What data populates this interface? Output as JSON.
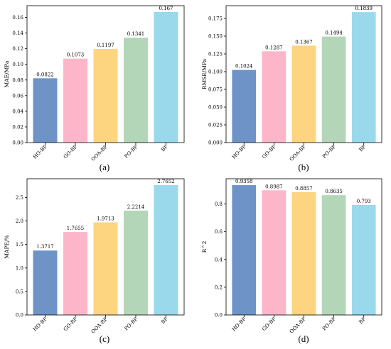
{
  "colors": [
    "#6e93c7",
    "#fdb6c9",
    "#fdd47f",
    "#b3d6b8",
    "#9ad9ec"
  ],
  "chart_data": [
    {
      "type": "bar",
      "panel": "(a)",
      "ylabel": "MAE/MPa",
      "categories": [
        "HO-BP",
        "GO-BP",
        "OOA-BP",
        "PO-BP",
        "BP"
      ],
      "values": [
        0.0822,
        0.1073,
        0.1197,
        0.1341,
        0.167
      ],
      "value_labels": [
        "0.0822",
        "0.1073",
        "0.1197",
        "0.1341",
        "0.167"
      ],
      "ylim": [
        0,
        0.175
      ],
      "yticks": [
        0,
        0.02,
        0.04,
        0.06,
        0.08,
        0.1,
        0.12,
        0.14,
        0.16
      ],
      "ytick_labels": [
        "0.00",
        "0.02",
        "0.04",
        "0.06",
        "0.08",
        "0.10",
        "0.12",
        "0.14",
        "0.16"
      ]
    },
    {
      "type": "bar",
      "panel": "(b)",
      "ylabel": "RMSE/MPa",
      "categories": [
        "HO-BP",
        "GO-BP",
        "OOA-BP",
        "PO-BP",
        "BP"
      ],
      "values": [
        0.1024,
        0.1287,
        0.1367,
        0.1494,
        0.1839
      ],
      "value_labels": [
        "0.1024",
        "0.1287",
        "0.1367",
        "0.1494",
        "0.1839"
      ],
      "ylim": [
        0,
        0.193
      ],
      "yticks": [
        0,
        0.025,
        0.05,
        0.075,
        0.1,
        0.125,
        0.15,
        0.175
      ],
      "ytick_labels": [
        "0.000",
        "0.025",
        "0.050",
        "0.075",
        "0.100",
        "0.125",
        "0.150",
        "0.175"
      ]
    },
    {
      "type": "bar",
      "panel": "(c)",
      "ylabel": "MAPE/%",
      "categories": [
        "HO-BP",
        "GO-BP",
        "OOA-BP",
        "PO-BP",
        "BP"
      ],
      "values": [
        1.3717,
        1.7655,
        1.9713,
        2.2214,
        2.7652
      ],
      "value_labels": [
        "1.3717",
        "1.7655",
        "1.9713",
        "2.2214",
        "2.7652"
      ],
      "ylim": [
        0,
        2.9
      ],
      "yticks": [
        0,
        0.5,
        1.0,
        1.5,
        2.0,
        2.5
      ],
      "ytick_labels": [
        "0.0",
        "0.5",
        "1.0",
        "1.5",
        "2.0",
        "2.5"
      ]
    },
    {
      "type": "bar",
      "panel": "(d)",
      "ylabel": "R^2",
      "categories": [
        "HO-BP",
        "GO-BP",
        "OOA-BP",
        "PO-BP",
        "BP"
      ],
      "values": [
        0.9358,
        0.8987,
        0.8857,
        0.8635,
        0.793
      ],
      "value_labels": [
        "0.9358",
        "0.8987",
        "0.8857",
        "0.8635",
        "0.793"
      ],
      "ylim": [
        0,
        0.982
      ],
      "yticks": [
        0,
        0.2,
        0.4,
        0.6,
        0.8
      ],
      "ytick_labels": [
        "0.0",
        "0.2",
        "0.4",
        "0.6",
        "0.8"
      ]
    }
  ]
}
